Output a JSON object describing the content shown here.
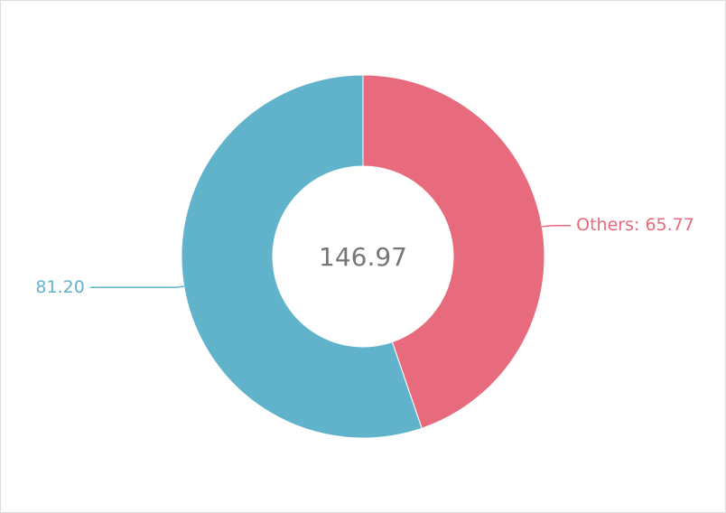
{
  "chart_data": {
    "type": "donut",
    "categories": [
      "Others",
      null
    ],
    "values": [
      65.77,
      81.2
    ],
    "value_labels": [
      "Others: 65.77",
      "81.20"
    ],
    "colors": [
      "#e76b7d",
      "#61b3cc"
    ],
    "center_value": 146.97
  }
}
